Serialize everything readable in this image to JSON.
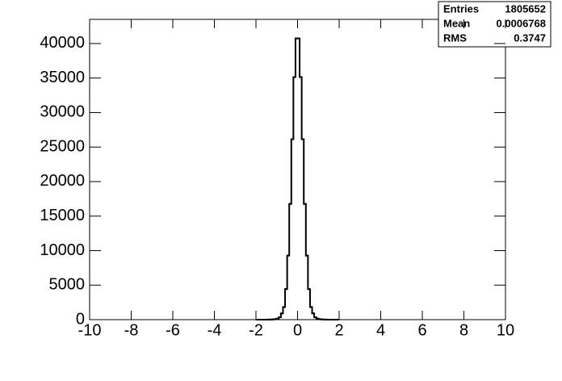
{
  "chart_data": {
    "type": "histogram",
    "bins": [
      -2,
      -1.9,
      -1.8,
      -1.7,
      -1.6,
      -1.5,
      -1.4,
      -1.3,
      -1.2,
      -1.1,
      -1,
      -0.9,
      -0.8,
      -0.7,
      -0.6,
      -0.5,
      -0.4,
      -0.3,
      -0.2,
      -0.1,
      0,
      0.1,
      0.2,
      0.3,
      0.4,
      0.5,
      0.6,
      0.7,
      0.8,
      0.9,
      1,
      1.1,
      1.2,
      1.3,
      1.4,
      1.5,
      1.6,
      1.7,
      1.8,
      1.9,
      2
    ],
    "values": [
      0,
      0,
      0,
      1,
      2,
      5,
      10,
      20,
      40,
      80,
      150,
      350,
      900,
      1820,
      4430,
      9280,
      16770,
      26140,
      35140,
      40740,
      40740,
      35140,
      26140,
      16770,
      9280,
      4430,
      1820,
      900,
      350,
      150,
      80,
      40,
      20,
      10,
      5,
      2,
      1,
      0,
      0,
      0
    ],
    "color": "#000000",
    "xlim": [
      -10,
      10
    ],
    "xticks": [
      -10,
      -8,
      -6,
      -4,
      -2,
      0,
      2,
      4,
      6,
      8,
      10
    ],
    "ylim": [
      0,
      43500
    ],
    "yticks": [
      0,
      5000,
      10000,
      15000,
      20000,
      25000,
      30000,
      35000,
      40000
    ],
    "stats": [
      {
        "label": "Entries",
        "value": 1805652
      },
      {
        "label": "Mean",
        "value": 0.0006768
      },
      {
        "label": "RMS",
        "value": 0.3747
      }
    ]
  }
}
